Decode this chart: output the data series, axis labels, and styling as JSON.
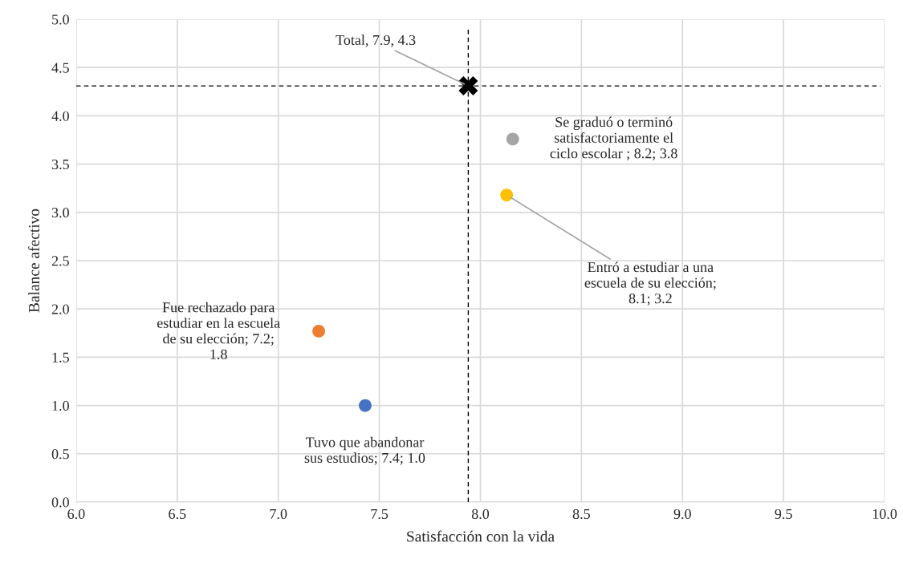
{
  "chart_data": {
    "type": "scatter",
    "xlabel": "Satisfacción con la vida",
    "ylabel": "Balance afectivo",
    "xlim": [
      6.0,
      10.0
    ],
    "xticks": [
      {
        "value": 6.0,
        "label": "6.0"
      },
      {
        "value": 6.5,
        "label": "6.5"
      },
      {
        "value": 7.0,
        "label": "7.0"
      },
      {
        "value": 7.5,
        "label": "7.5"
      },
      {
        "value": 8.0,
        "label": "8.0"
      },
      {
        "value": 8.5,
        "label": "8.5"
      },
      {
        "value": 9.0,
        "label": "9.0"
      },
      {
        "value": 9.5,
        "label": "9.5"
      },
      {
        "value": 10.0,
        "label": "10.0"
      }
    ],
    "ylim": [
      0.0,
      5.0
    ],
    "yticks": [
      {
        "value": 0.0,
        "label": "0.0"
      },
      {
        "value": 0.5,
        "label": "0.5"
      },
      {
        "value": 1.0,
        "label": "1.0"
      },
      {
        "value": 1.5,
        "label": "1.5"
      },
      {
        "value": 2.0,
        "label": "2.0"
      },
      {
        "value": 2.5,
        "label": "2.5"
      },
      {
        "value": 3.0,
        "label": "3.0"
      },
      {
        "value": 3.5,
        "label": "3.5"
      },
      {
        "value": 4.0,
        "label": "4.0"
      },
      {
        "value": 4.5,
        "label": "4.5"
      },
      {
        "value": 5.0,
        "label": "5.0"
      }
    ],
    "grid": true,
    "series": [
      {
        "marker": "circle",
        "x": [
          8.16,
          8.13,
          7.2,
          7.43
        ],
        "values": [
          3.76,
          3.18,
          1.77,
          1.0
        ],
        "colors": [
          "#a5a5a5",
          "#ffc000",
          "#ed7d31",
          "#4472c4"
        ]
      },
      {
        "marker": "cross",
        "x": [
          7.94
        ],
        "values": [
          4.31
        ],
        "color": "#000000"
      }
    ],
    "ref_lines": [
      {
        "axis": "x",
        "value": 7.94,
        "color": "#000000",
        "line_style": "dashed"
      },
      {
        "axis": "y",
        "value": 4.31,
        "color": "#000000",
        "line_style": "dashed"
      }
    ],
    "annotations": [
      {
        "text": "Total, 7.9, 4.3",
        "x": 7.94,
        "y": 4.31
      },
      "Se graduó o terminó\nsatisfactoriamente el\nciclo escolar ; 8.2; 3.8",
      {
        "text": "Entró a estudiar a una\nescuela de su elección;\n8.1; 3.2",
        "x": 8.13,
        "y": 3.18
      },
      "Fue rechazado para\nestudiar en la escuela\nde su elección; 7.2;\n1.8",
      "Tuvo que abandonar\nsus estudios; 7.4; 1.0"
    ]
  }
}
